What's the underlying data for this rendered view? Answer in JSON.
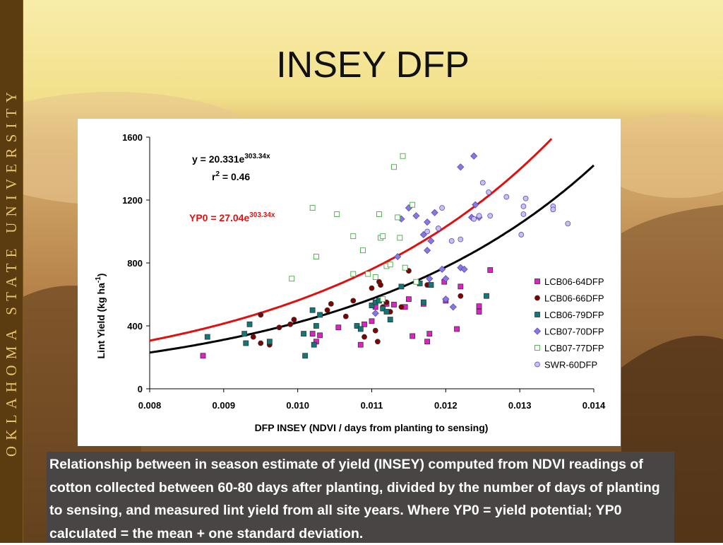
{
  "slide": {
    "title": "INSEY DFP",
    "sidebar_text": "OKLAHOMA STATE UNIVERSITY",
    "caption": "Relationship between in season estimate of yield (INSEY) computed from NDVI readings of cotton collected between 60-80 days after planting, divided by the number of days of planting to sensing, and measured lint yield from all site years. Where YP0 = yield potential; YP0 calculated = the mean + one standard deviation.",
    "colors": {
      "background_top": "#f8e8a0",
      "sidebar": "#5a3c10",
      "sidebar_text": "#e8c46a",
      "caption_bg": "#4a4545"
    }
  },
  "chart_data": {
    "type": "scatter",
    "xlabel": "DFP INSEY (NDVI / days from planting to sensing)",
    "ylabel": "Lint Yield (kg ha",
    "ylabel_sup": "-1",
    "ylabel_end": ")",
    "xlim": [
      0.008,
      0.014
    ],
    "ylim": [
      0,
      1600
    ],
    "xticks": [
      0.008,
      0.009,
      0.01,
      0.011,
      0.012,
      0.013,
      0.014
    ],
    "xtick_labels": [
      "0.008",
      "0.009",
      "0.010",
      "0.011",
      "0.012",
      "0.013",
      "0.014"
    ],
    "yticks": [
      0,
      400,
      800,
      1200,
      1600
    ],
    "ytick_labels": [
      "0",
      "400",
      "800",
      "1200",
      "1600"
    ],
    "legend_position": "bottom-right",
    "annotations": {
      "eq_main": "y = 20.331e",
      "eq_main_sup": "303.34x",
      "r2_label": "r",
      "r2_sup": "2",
      "r2_value": " = 0.46",
      "yp0_main": "YP0 = 27.04e",
      "yp0_sup": "303.34x"
    },
    "curves": [
      {
        "a": 20.331,
        "b": 303.34,
        "color": "#000000"
      },
      {
        "a": 27.04,
        "b": 303.34,
        "color": "#e01010"
      }
    ],
    "series": [
      {
        "name": "LCB06-64DFP",
        "marker": "square",
        "color": "#e020c8",
        "points": [
          [
            0.00872,
            210
          ],
          [
            0.0102,
            350
          ],
          [
            0.01025,
            300
          ],
          [
            0.0103,
            340
          ],
          [
            0.01055,
            390
          ],
          [
            0.01085,
            280
          ],
          [
            0.0109,
            410
          ],
          [
            0.011,
            430
          ],
          [
            0.01105,
            520
          ],
          [
            0.0112,
            540
          ],
          [
            0.0113,
            535
          ],
          [
            0.01145,
            520
          ],
          [
            0.0115,
            570
          ],
          [
            0.01155,
            335
          ],
          [
            0.0117,
            540
          ],
          [
            0.01175,
            300
          ],
          [
            0.01178,
            350
          ],
          [
            0.0118,
            660
          ],
          [
            0.01198,
            680
          ],
          [
            0.012,
            560
          ],
          [
            0.01215,
            380
          ],
          [
            0.0122,
            650
          ],
          [
            0.01245,
            490
          ],
          [
            0.01245,
            525
          ],
          [
            0.0126,
            755
          ]
        ]
      },
      {
        "name": "LCB06-66DFP",
        "marker": "circle",
        "color": "#800000",
        "points": [
          [
            0.0094,
            330
          ],
          [
            0.0095,
            470
          ],
          [
            0.0095,
            290
          ],
          [
            0.00962,
            280
          ],
          [
            0.00975,
            390
          ],
          [
            0.0099,
            410
          ],
          [
            0.00995,
            440
          ],
          [
            0.0104,
            500
          ],
          [
            0.01045,
            540
          ],
          [
            0.01065,
            460
          ],
          [
            0.01075,
            560
          ],
          [
            0.0108,
            400
          ],
          [
            0.0109,
            330
          ],
          [
            0.011,
            530
          ],
          [
            0.011,
            640
          ],
          [
            0.01105,
            370
          ],
          [
            0.01108,
            300
          ],
          [
            0.0111,
            680
          ],
          [
            0.01112,
            660
          ],
          [
            0.01115,
            520
          ],
          [
            0.0112,
            550
          ],
          [
            0.01125,
            490
          ],
          [
            0.0114,
            520
          ],
          [
            0.0115,
            750
          ],
          [
            0.01175,
            660
          ],
          [
            0.0122,
            590
          ]
        ]
      },
      {
        "name": "LCB06-79DFP",
        "marker": "square",
        "color": "#107878",
        "points": [
          [
            0.00878,
            330
          ],
          [
            0.00928,
            350
          ],
          [
            0.0093,
            290
          ],
          [
            0.00935,
            410
          ],
          [
            0.00962,
            300
          ],
          [
            0.0101,
            210
          ],
          [
            0.01008,
            350
          ],
          [
            0.0102,
            500
          ],
          [
            0.01022,
            280
          ],
          [
            0.01025,
            400
          ],
          [
            0.0103,
            470
          ],
          [
            0.0108,
            400
          ],
          [
            0.01085,
            380
          ],
          [
            0.011,
            530
          ],
          [
            0.01105,
            550
          ],
          [
            0.0111,
            560
          ],
          [
            0.01115,
            510
          ],
          [
            0.0112,
            490
          ],
          [
            0.01125,
            440
          ],
          [
            0.0114,
            650
          ],
          [
            0.01165,
            670
          ],
          [
            0.0117,
            550
          ],
          [
            0.0118,
            660
          ],
          [
            0.01255,
            590
          ]
        ]
      },
      {
        "name": "LCB07-70DFP",
        "marker": "diamond",
        "color": "#8878e0",
        "points": [
          [
            0.01105,
            480
          ],
          [
            0.01135,
            840
          ],
          [
            0.0114,
            1080
          ],
          [
            0.0115,
            1150
          ],
          [
            0.0116,
            1100
          ],
          [
            0.0117,
            980
          ],
          [
            0.01175,
            880
          ],
          [
            0.01175,
            1060
          ],
          [
            0.01178,
            700
          ],
          [
            0.0118,
            940
          ],
          [
            0.01185,
            1120
          ],
          [
            0.01195,
            760
          ],
          [
            0.012,
            700
          ],
          [
            0.012,
            570
          ],
          [
            0.0121,
            520
          ],
          [
            0.0122,
            1410
          ],
          [
            0.0122,
            770
          ],
          [
            0.01225,
            760
          ],
          [
            0.01235,
            1090
          ],
          [
            0.01238,
            1480
          ],
          [
            0.0124,
            1170
          ],
          [
            0.01245,
            1090
          ]
        ]
      },
      {
        "name": "LCB07-77DFP",
        "marker": "square",
        "color": "#30a030",
        "open": true,
        "points": [
          [
            0.00992,
            700
          ],
          [
            0.0102,
            1150
          ],
          [
            0.01025,
            840
          ],
          [
            0.01053,
            1110
          ],
          [
            0.01075,
            970
          ],
          [
            0.01075,
            730
          ],
          [
            0.01088,
            880
          ],
          [
            0.01095,
            730
          ],
          [
            0.01105,
            710
          ],
          [
            0.0111,
            1110
          ],
          [
            0.01112,
            960
          ],
          [
            0.01115,
            970
          ],
          [
            0.01115,
            570
          ],
          [
            0.0112,
            780
          ],
          [
            0.01125,
            790
          ],
          [
            0.0113,
            1410
          ],
          [
            0.01135,
            1090
          ],
          [
            0.01138,
            960
          ],
          [
            0.01142,
            1480
          ],
          [
            0.01145,
            770
          ],
          [
            0.01155,
            1170
          ],
          [
            0.0116,
            680
          ]
        ]
      },
      {
        "name": "SWR-60DFP",
        "marker": "circle",
        "color": "#9080e0",
        "open_light": true,
        "points": [
          [
            0.01175,
            1000
          ],
          [
            0.0119,
            1020
          ],
          [
            0.01195,
            1150
          ],
          [
            0.01208,
            940
          ],
          [
            0.0122,
            950
          ],
          [
            0.01238,
            1080
          ],
          [
            0.01245,
            1100
          ],
          [
            0.0125,
            1310
          ],
          [
            0.01258,
            1250
          ],
          [
            0.0126,
            1100
          ],
          [
            0.01282,
            1220
          ],
          [
            0.01302,
            980
          ],
          [
            0.01305,
            1110
          ],
          [
            0.01305,
            1160
          ],
          [
            0.01308,
            1210
          ],
          [
            0.01345,
            1160
          ],
          [
            0.01345,
            1140
          ],
          [
            0.01365,
            1050
          ]
        ]
      }
    ]
  }
}
